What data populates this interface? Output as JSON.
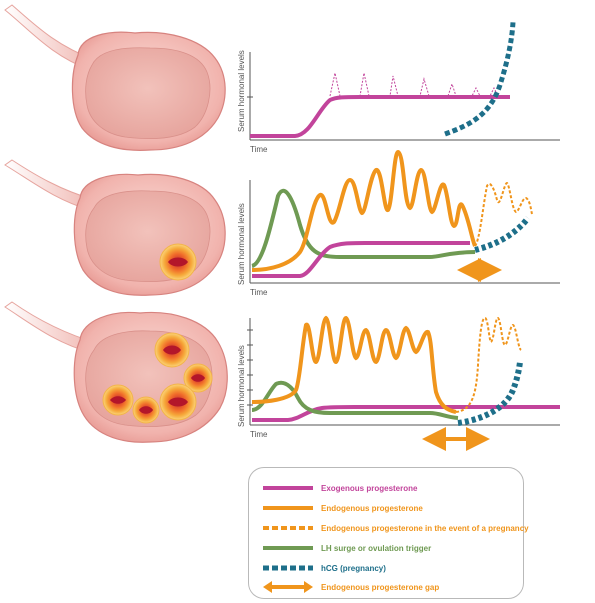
{
  "panels": [
    {
      "ylabel": "Serum hormonal levels",
      "xlabel": "Time",
      "follicles": 0
    },
    {
      "ylabel": "Serum hormonal levels",
      "xlabel": "Time",
      "follicles": 1
    },
    {
      "ylabel": "Serum hormonal levels",
      "xlabel": "Time",
      "follicles": 5
    }
  ],
  "legend": [
    {
      "label": "Exogenous progesterone",
      "color": "#c2449b",
      "style": "solid"
    },
    {
      "label": "Endogenous progesterone",
      "color": "#f0951c",
      "style": "solid"
    },
    {
      "label": "Endogenous progesterone in the event of a pregnancy",
      "color": "#f0951c",
      "style": "dashed"
    },
    {
      "label": "LH surge or ovulation trigger",
      "color": "#6f9a53",
      "style": "solid"
    },
    {
      "label": "hCG (pregnancy)",
      "color": "#1e6f8a",
      "style": "dashed"
    },
    {
      "label": "Endogenous progesterone gap",
      "color": "#f0951c",
      "style": "arrow"
    }
  ],
  "colors": {
    "exogenous": "#c2449b",
    "endogenous": "#f0951c",
    "lh": "#6f9a53",
    "hcg": "#1e6f8a",
    "ovary": "#f1b9b5",
    "ovary_edge": "#d7837f"
  }
}
